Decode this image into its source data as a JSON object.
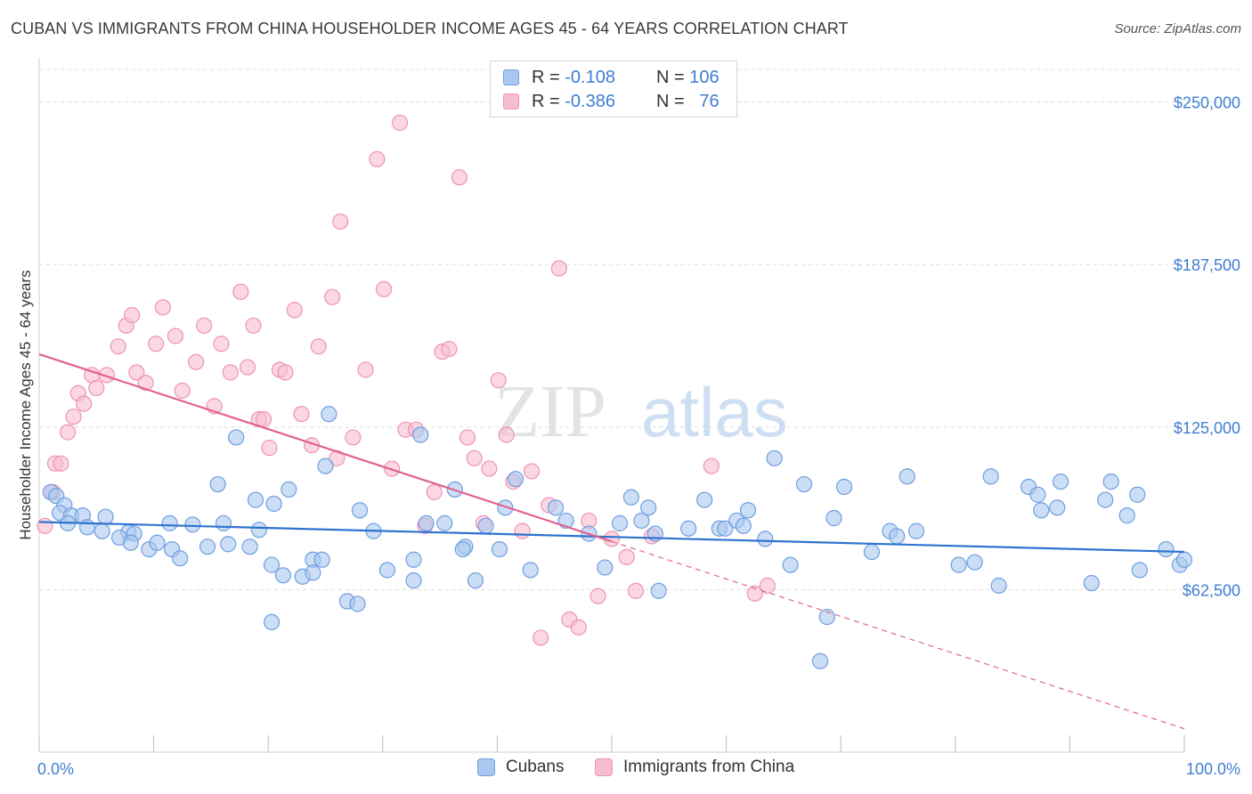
{
  "title": "CUBAN VS IMMIGRANTS FROM CHINA HOUSEHOLDER INCOME AGES 45 - 64 YEARS CORRELATION CHART",
  "source": "Source: ZipAtlas.com",
  "watermark": {
    "zip": "ZIP",
    "atlas": "atlas"
  },
  "legend": {
    "series1": {
      "r_label": "R = ",
      "r_value": "-0.108",
      "n_label": "N = ",
      "n_value": "106"
    },
    "series2": {
      "r_label": "R = ",
      "r_value": "-0.386",
      "n_label": "N = ",
      "n_value": "76"
    }
  },
  "colors": {
    "cubans_fill": "#a9c8ef",
    "cubans_stroke": "#6f9ee0",
    "cubans_line": "#2f73d0",
    "china_fill": "#f6bcd0",
    "china_stroke": "#ee94b2",
    "china_line": "#e2628d",
    "tick_label": "#3f7ed3",
    "grid": "#dddddd"
  },
  "chart_data": {
    "type": "scatter",
    "title": "CUBAN VS IMMIGRANTS FROM CHINA HOUSEHOLDER INCOME AGES 45 - 64 YEARS CORRELATION CHART",
    "xlabel": "",
    "ylabel": "Householder Income Ages 45 - 64 years",
    "xlim": [
      0,
      100
    ],
    "ylim": [
      0,
      262500
    ],
    "x_tick_labels": [
      "0.0%",
      "100.0%"
    ],
    "y_ticks": [
      62500,
      125000,
      187500,
      250000
    ],
    "y_tick_labels": [
      "$62,500",
      "$125,000",
      "$187,500",
      "$250,000"
    ],
    "grid": true,
    "legend_position": "top-center",
    "series": [
      {
        "name": "Cubans",
        "r": -0.108,
        "n": 106,
        "trend": {
          "x": [
            0,
            100
          ],
          "y": [
            88500,
            77000
          ]
        },
        "points": [
          [
            1.0,
            100000
          ],
          [
            1.5,
            98500
          ],
          [
            2.2,
            95000
          ],
          [
            1.8,
            92000
          ],
          [
            2.8,
            91000
          ],
          [
            3.8,
            91000
          ],
          [
            5.8,
            90500
          ],
          [
            2.5,
            88000
          ],
          [
            4.2,
            86500
          ],
          [
            5.5,
            85000
          ],
          [
            7.8,
            84500
          ],
          [
            11.4,
            88000
          ],
          [
            13.4,
            87500
          ],
          [
            16.1,
            88000
          ],
          [
            19.2,
            85500
          ],
          [
            7.0,
            82500
          ],
          [
            8.3,
            84000
          ],
          [
            8.0,
            80500
          ],
          [
            9.6,
            78000
          ],
          [
            10.3,
            80500
          ],
          [
            11.6,
            78000
          ],
          [
            12.3,
            74500
          ],
          [
            14.7,
            79000
          ],
          [
            16.5,
            80000
          ],
          [
            18.4,
            79000
          ],
          [
            20.3,
            72000
          ],
          [
            23.9,
            74000
          ],
          [
            24.7,
            74000
          ],
          [
            15.6,
            103000
          ],
          [
            17.2,
            121000
          ],
          [
            18.9,
            97000
          ],
          [
            21.8,
            101000
          ],
          [
            20.5,
            95500
          ],
          [
            23.0,
            67500
          ],
          [
            23.9,
            69000
          ],
          [
            25.0,
            110000
          ],
          [
            25.3,
            130000
          ],
          [
            21.3,
            68000
          ],
          [
            20.3,
            50000
          ],
          [
            26.9,
            58000
          ],
          [
            27.8,
            57000
          ],
          [
            28.0,
            93000
          ],
          [
            30.4,
            70000
          ],
          [
            29.2,
            85000
          ],
          [
            32.7,
            74000
          ],
          [
            32.7,
            66000
          ],
          [
            33.3,
            122000
          ],
          [
            33.8,
            88000
          ],
          [
            35.4,
            88000
          ],
          [
            36.3,
            101000
          ],
          [
            37.2,
            79000
          ],
          [
            37.0,
            78000
          ],
          [
            38.1,
            66000
          ],
          [
            39.0,
            87000
          ],
          [
            40.2,
            78000
          ],
          [
            40.7,
            94000
          ],
          [
            41.6,
            105000
          ],
          [
            42.9,
            70000
          ],
          [
            45.1,
            94000
          ],
          [
            46.0,
            89000
          ],
          [
            48.0,
            84000
          ],
          [
            49.4,
            71000
          ],
          [
            50.7,
            88000
          ],
          [
            51.7,
            98000
          ],
          [
            52.6,
            89000
          ],
          [
            53.2,
            94000
          ],
          [
            53.8,
            84000
          ],
          [
            54.1,
            62000
          ],
          [
            56.7,
            86000
          ],
          [
            58.1,
            97000
          ],
          [
            59.4,
            86000
          ],
          [
            59.9,
            86000
          ],
          [
            60.9,
            89000
          ],
          [
            61.5,
            87000
          ],
          [
            61.9,
            93000
          ],
          [
            63.4,
            82000
          ],
          [
            64.2,
            113000
          ],
          [
            65.6,
            72000
          ],
          [
            68.2,
            35000
          ],
          [
            66.8,
            103000
          ],
          [
            68.8,
            52000
          ],
          [
            69.4,
            90000
          ],
          [
            70.3,
            102000
          ],
          [
            72.7,
            77000
          ],
          [
            74.3,
            85000
          ],
          [
            75.8,
            106000
          ],
          [
            76.6,
            85000
          ],
          [
            74.9,
            83000
          ],
          [
            83.1,
            106000
          ],
          [
            81.7,
            73000
          ],
          [
            80.3,
            72000
          ],
          [
            83.8,
            64000
          ],
          [
            86.4,
            102000
          ],
          [
            87.2,
            99000
          ],
          [
            87.5,
            93000
          ],
          [
            88.9,
            94000
          ],
          [
            89.2,
            104000
          ],
          [
            91.9,
            65000
          ],
          [
            93.1,
            97000
          ],
          [
            93.6,
            104000
          ],
          [
            95.0,
            91000
          ],
          [
            95.9,
            99000
          ],
          [
            96.1,
            70000
          ],
          [
            98.4,
            78000
          ],
          [
            99.6,
            72000
          ],
          [
            100.0,
            74000
          ]
        ]
      },
      {
        "name": "Immigrants from China",
        "r": -0.386,
        "n": 76,
        "trend": {
          "x": [
            0,
            50
          ],
          "y": [
            153000,
            81000
          ]
        },
        "points": [
          [
            0.5,
            87000
          ],
          [
            1.2,
            100000
          ],
          [
            1.4,
            111000
          ],
          [
            1.9,
            111000
          ],
          [
            2.5,
            123000
          ],
          [
            3.0,
            129000
          ],
          [
            3.4,
            138000
          ],
          [
            3.9,
            134000
          ],
          [
            4.6,
            145000
          ],
          [
            5.0,
            140000
          ],
          [
            5.9,
            145000
          ],
          [
            6.9,
            156000
          ],
          [
            7.6,
            164000
          ],
          [
            8.1,
            168000
          ],
          [
            8.5,
            146000
          ],
          [
            9.3,
            142000
          ],
          [
            10.2,
            157000
          ],
          [
            10.8,
            171000
          ],
          [
            11.9,
            160000
          ],
          [
            12.5,
            139000
          ],
          [
            13.7,
            150000
          ],
          [
            14.4,
            164000
          ],
          [
            15.3,
            133000
          ],
          [
            15.9,
            157000
          ],
          [
            16.7,
            146000
          ],
          [
            17.6,
            177000
          ],
          [
            18.2,
            148000
          ],
          [
            18.7,
            164000
          ],
          [
            19.2,
            128000
          ],
          [
            19.6,
            128000
          ],
          [
            20.1,
            117000
          ],
          [
            21.0,
            147000
          ],
          [
            21.5,
            146000
          ],
          [
            22.3,
            170000
          ],
          [
            22.9,
            130000
          ],
          [
            23.8,
            118000
          ],
          [
            24.4,
            156000
          ],
          [
            25.6,
            175000
          ],
          [
            26.3,
            204000
          ],
          [
            26.0,
            113000
          ],
          [
            27.4,
            121000
          ],
          [
            28.5,
            147000
          ],
          [
            29.5,
            228000
          ],
          [
            30.1,
            178000
          ],
          [
            30.8,
            109000
          ],
          [
            31.5,
            242000
          ],
          [
            32.0,
            124000
          ],
          [
            32.9,
            124000
          ],
          [
            33.7,
            87000
          ],
          [
            34.5,
            100000
          ],
          [
            35.2,
            154000
          ],
          [
            35.8,
            155000
          ],
          [
            36.7,
            221000
          ],
          [
            37.4,
            121000
          ],
          [
            38.0,
            113000
          ],
          [
            38.8,
            88000
          ],
          [
            39.3,
            109000
          ],
          [
            40.1,
            143000
          ],
          [
            40.8,
            122000
          ],
          [
            41.4,
            104000
          ],
          [
            42.2,
            85000
          ],
          [
            43.0,
            108000
          ],
          [
            43.8,
            44000
          ],
          [
            44.5,
            95000
          ],
          [
            45.4,
            186000
          ],
          [
            46.3,
            51000
          ],
          [
            47.1,
            48000
          ],
          [
            48.0,
            89000
          ],
          [
            48.8,
            60000
          ],
          [
            50.0,
            82000
          ],
          [
            51.3,
            75000
          ],
          [
            52.1,
            62000
          ],
          [
            53.5,
            83000
          ],
          [
            62.5,
            61000
          ],
          [
            63.6,
            64000
          ],
          [
            58.7,
            110000
          ]
        ]
      }
    ]
  }
}
